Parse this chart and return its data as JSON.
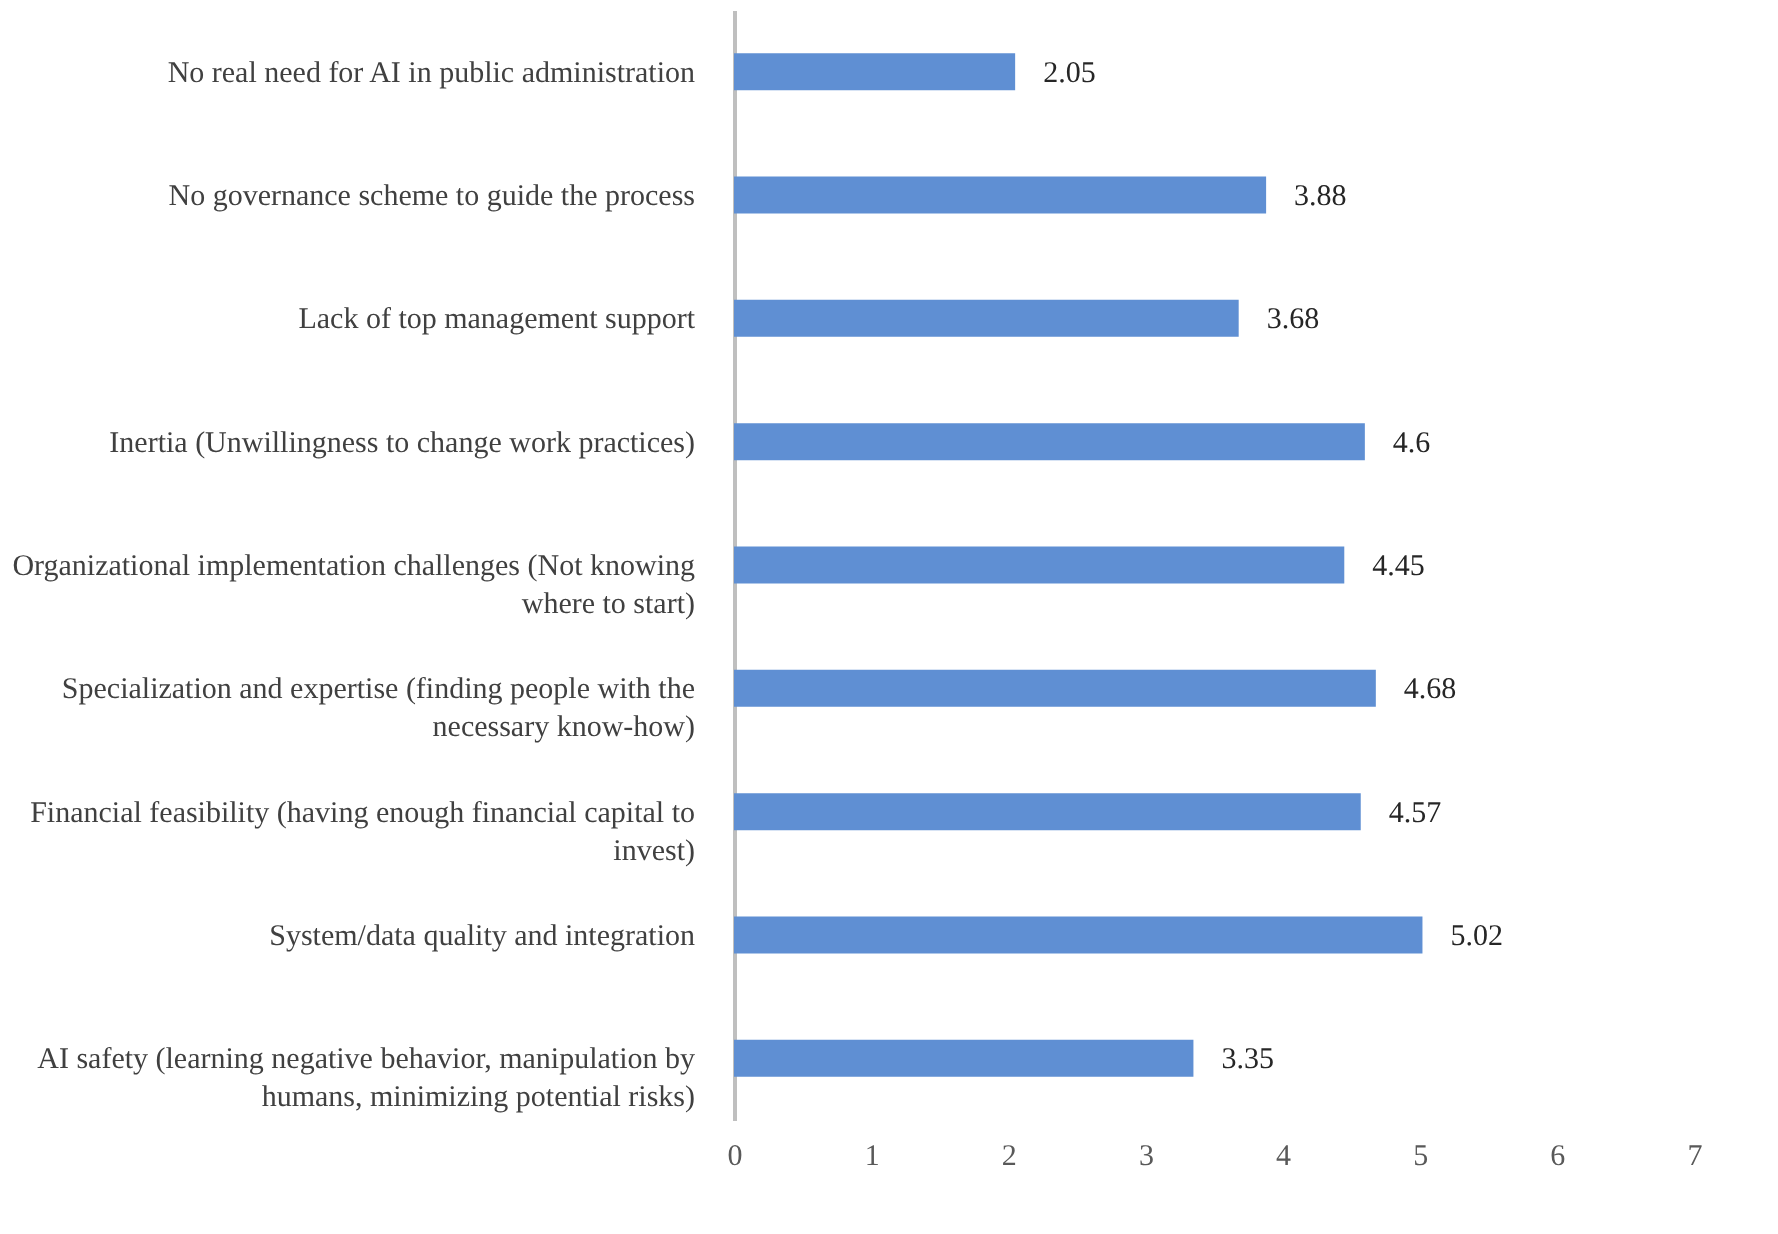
{
  "chart_data": {
    "type": "bar",
    "orientation": "horizontal",
    "categories": [
      "No real need for AI in public administration",
      "No governance scheme to guide the process",
      "Lack of top management support",
      "Inertia (Unwillingness to change work practices)",
      "Organizational implementation challenges (Not knowing where to start)",
      "Specialization and expertise (finding people with the necessary know-how)",
      "Financial feasibility (having enough financial capital to invest)",
      "System/data quality and integration",
      "AI safety (learning negative behavior, manipulation by humans, minimizing potential risks)"
    ],
    "values": [
      2.05,
      3.88,
      3.68,
      4.6,
      4.45,
      4.68,
      4.57,
      5.02,
      3.35
    ],
    "color": "#5f8fd3",
    "xlim": [
      0,
      7
    ],
    "xticks": [
      0,
      1,
      2,
      3,
      4,
      5,
      6,
      7
    ],
    "grid": false,
    "data_labels": true
  }
}
